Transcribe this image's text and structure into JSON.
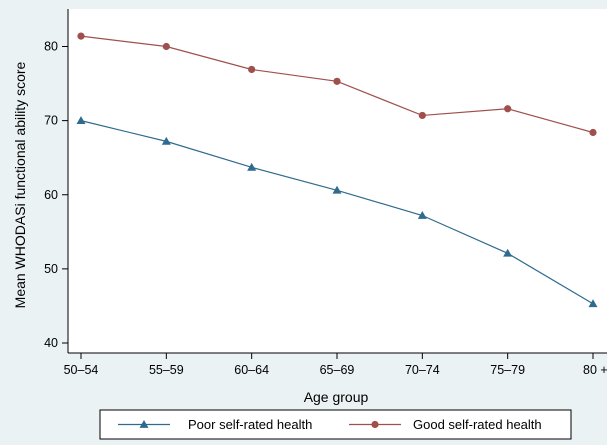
{
  "chart_data": {
    "type": "line",
    "title": "",
    "xlabel": "Age group",
    "ylabel": "Mean WHODASi functional ability score",
    "categories": [
      "50–54",
      "55–59",
      "60–64",
      "65–69",
      "70–74",
      "75–79",
      "80 +"
    ],
    "ylim": [
      40,
      80
    ],
    "yticks": [
      40,
      50,
      60,
      70,
      80
    ],
    "grid": false,
    "legend": "bottom",
    "series": [
      {
        "name": "Poor self-rated health",
        "marker": "triangle",
        "color": "#2e6b8e",
        "values": [
          70.0,
          67.2,
          63.7,
          60.6,
          57.2,
          52.1,
          45.3
        ]
      },
      {
        "name": "Good self-rated health",
        "marker": "circle",
        "color": "#a0504c",
        "values": [
          81.4,
          80.0,
          76.9,
          75.3,
          70.7,
          71.6,
          68.4
        ]
      }
    ]
  }
}
